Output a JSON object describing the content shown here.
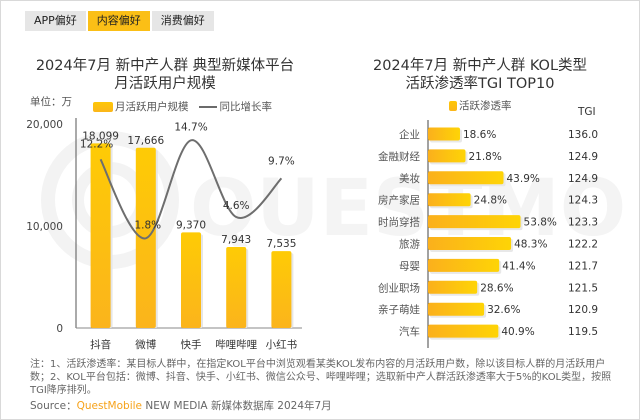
{
  "tabs": [
    {
      "label": "APP偏好",
      "active": false
    },
    {
      "label": "内容偏好",
      "active": true
    },
    {
      "label": "消费偏好",
      "active": false
    }
  ],
  "watermark": "QUESTMOBILE",
  "chart_data": [
    {
      "type": "bar",
      "title_line1": "2024年7月 新中产人群 典型新媒体平台",
      "title_line2": "月活跃用户规模",
      "unit_label": "单位：万",
      "legend": {
        "bar": "月活跃用户规模",
        "line": "同比增长率"
      },
      "categories": [
        "抖音",
        "微博",
        "快手",
        "哔哩哔哩",
        "小红书"
      ],
      "series": [
        {
          "name": "月活跃用户规模",
          "kind": "bar",
          "values": [
            18099,
            17666,
            9370,
            7943,
            7535
          ],
          "labels": [
            "18,099",
            "17,666",
            "9,370",
            "7,943",
            "7,535"
          ]
        },
        {
          "name": "同比增长率",
          "kind": "line",
          "values": [
            12.2,
            1.8,
            14.7,
            4.6,
            9.7
          ],
          "labels": [
            "12.2%",
            "1.8%",
            "14.7%",
            "4.6%",
            "9.7%"
          ]
        }
      ],
      "yticks": [
        "0",
        "10,000",
        "20,000"
      ],
      "ylim": [
        0,
        20000
      ],
      "colors": {
        "bar_top": "#fecb05",
        "bar_bottom": "#fbb41c",
        "line": "#6e6e6e"
      }
    },
    {
      "type": "bar",
      "orientation": "horizontal",
      "title_line1": "2024年7月 新中产人群 KOL类型",
      "title_line2": "活跃渗透率TGI TOP10",
      "legend": {
        "bar": "活跃渗透率"
      },
      "tgi_header": "TGI",
      "categories": [
        "企业",
        "金融财经",
        "美妆",
        "房产家居",
        "时尚穿搭",
        "旅游",
        "母婴",
        "创业职场",
        "亲子萌娃",
        "汽车"
      ],
      "values": [
        18.6,
        21.8,
        43.9,
        24.8,
        53.8,
        48.3,
        41.4,
        28.6,
        32.6,
        40.9
      ],
      "labels": [
        "18.6%",
        "21.8%",
        "43.9%",
        "24.8%",
        "53.8%",
        "48.3%",
        "41.4%",
        "28.6%",
        "32.6%",
        "40.9%"
      ],
      "tgi": [
        "136.0",
        "124.9",
        "124.9",
        "124.3",
        "123.3",
        "122.2",
        "121.7",
        "121.5",
        "120.9",
        "119.5"
      ],
      "colors": {
        "bar_left": "#fbb01c",
        "bar_right": "#fed406"
      }
    }
  ],
  "notes": "注：1、活跃渗透率：某目标人群中，在指定KOL平台中浏览观看某类KOL发布内容的月活跃用户数，除以该目标人群的月活跃用户数；2、KOL平台包括：微博、抖音、快手、小红书、微信公众号、哔哩哔哩；选取新中产人群活跃渗透率大于5%的KOL类型，按照TGI降序排列。",
  "source": {
    "prefix": "Source：",
    "brand": "QuestMobile",
    "suffix": " NEW MEDIA 新媒体数据库 2024年7月"
  }
}
